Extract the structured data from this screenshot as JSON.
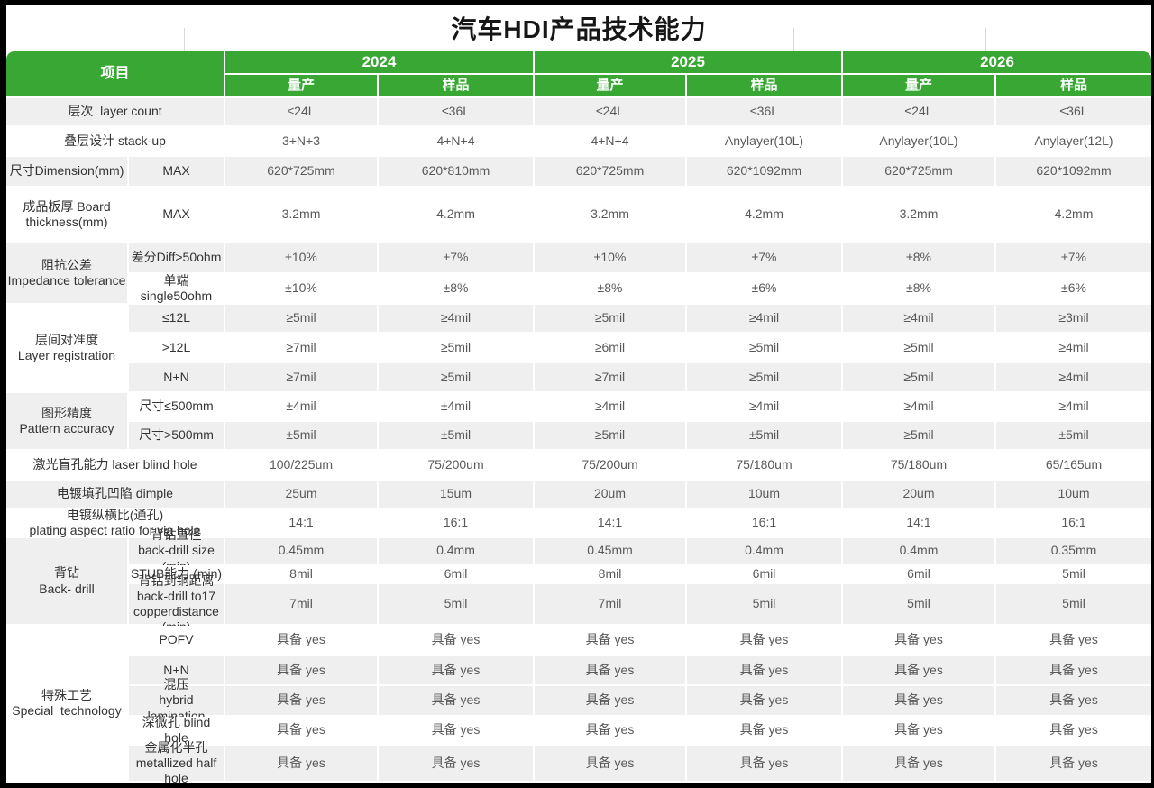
{
  "page": {
    "title": "汽车HDI产品技术能力"
  },
  "colors": {
    "header_green": "#38a733",
    "row_gray": "#efefef",
    "frame_black": "#000000",
    "label_text": "#333333",
    "value_text": "#595959"
  },
  "table": {
    "corner_label": "项目",
    "years": [
      {
        "label": "2024",
        "sub": [
          "量产",
          "样品"
        ]
      },
      {
        "label": "2025",
        "sub": [
          "量产",
          "样品"
        ]
      },
      {
        "label": "2026",
        "sub": [
          "量产",
          "样品"
        ]
      }
    ],
    "rows": [
      {
        "shade": "gray",
        "label": {
          "lines": [
            "层次  layer count"
          ]
        },
        "values": [
          "≤24L",
          "≤36L",
          "≤24L",
          "≤36L",
          "≤24L",
          "≤36L"
        ]
      },
      {
        "shade": "white",
        "label": {
          "lines": [
            "叠层设计 stack-up"
          ]
        },
        "values": [
          "3+N+3",
          "4+N+4",
          "4+N+4",
          "Anylayer(10L)",
          "Anylayer(10L)",
          "Anylayer(12L)"
        ]
      },
      {
        "shade": "gray",
        "group": {
          "lines": [
            "尺寸Dimension(mm)"
          ],
          "rowspan": 1,
          "shade": "gray"
        },
        "sub": {
          "lines": [
            "MAX"
          ]
        },
        "values": [
          "620*725mm",
          "620*810mm",
          "620*725mm",
          "620*1092mm",
          "620*725mm",
          "620*1092mm"
        ]
      },
      {
        "shade": "white",
        "group": {
          "lines": [
            "成品板厚 Board",
            "thickness(mm)"
          ],
          "rowspan": 1,
          "shade": "white"
        },
        "sub": {
          "lines": [
            "MAX"
          ]
        },
        "values": [
          "3.2mm",
          "4.2mm",
          "3.2mm",
          "4.2mm",
          "3.2mm",
          "4.2mm"
        ]
      },
      {
        "shade": "gray",
        "group": {
          "lines": [
            "阻抗公差",
            "Impedance tolerance"
          ],
          "rowspan": 2,
          "shade": "gray"
        },
        "sub": {
          "lines": [
            "差分Diff>50ohm"
          ]
        },
        "values": [
          "±10%",
          "±7%",
          "±10%",
          "±7%",
          "±8%",
          "±7%"
        ]
      },
      {
        "shade": "white",
        "sub": {
          "lines": [
            "单端 single50ohm"
          ]
        },
        "values": [
          "±10%",
          "±8%",
          "±8%",
          "±6%",
          "±8%",
          "±6%"
        ]
      },
      {
        "shade": "gray",
        "group": {
          "lines": [
            "层间对准度",
            "Layer registration"
          ],
          "rowspan": 3,
          "shade": "white"
        },
        "sub": {
          "lines": [
            "≤12L"
          ]
        },
        "values": [
          "≥5mil",
          "≥4mil",
          "≥5mil",
          "≥4mil",
          "≥4mil",
          "≥3mil"
        ]
      },
      {
        "shade": "white",
        "sub": {
          "lines": [
            ">12L"
          ]
        },
        "values": [
          "≥7mil",
          "≥5mil",
          "≥6mil",
          "≥5mil",
          "≥5mil",
          "≥4mil"
        ]
      },
      {
        "shade": "gray",
        "sub": {
          "lines": [
            "N+N"
          ]
        },
        "values": [
          "≥7mil",
          "≥5mil",
          "≥7mil",
          "≥5mil",
          "≥5mil",
          "≥4mil"
        ]
      },
      {
        "shade": "white",
        "group": {
          "lines": [
            "图形精度",
            "Pattern accuracy"
          ],
          "rowspan": 2,
          "shade": "gray"
        },
        "sub": {
          "lines": [
            "尺寸≤500mm"
          ]
        },
        "values": [
          "±4mil",
          "±4mil",
          "≥4mil",
          "≥4mil",
          "≥4mil",
          "≥4mil"
        ]
      },
      {
        "shade": "gray",
        "sub": {
          "lines": [
            "尺寸>500mm"
          ]
        },
        "values": [
          "±5mil",
          "±5mil",
          "≥5mil",
          "±5mil",
          "≥5mil",
          "±5mil"
        ]
      },
      {
        "shade": "white",
        "label": {
          "lines": [
            "激光盲孔能力 laser blind hole"
          ]
        },
        "values": [
          "100/225um",
          "75/200um",
          "75/200um",
          "75/180um",
          "75/180um",
          "65/165um"
        ]
      },
      {
        "shade": "gray",
        "label": {
          "lines": [
            "电镀填孔凹陷 dimple"
          ]
        },
        "values": [
          "25um",
          "15um",
          "20um",
          "10um",
          "20um",
          "10um"
        ]
      },
      {
        "shade": "white",
        "label": {
          "lines": [
            "电镀纵横比(通孔)",
            "plating aspect ratio for via hole"
          ]
        },
        "values": [
          "14:1",
          "16:1",
          "14:1",
          "16:1",
          "14:1",
          "16:1"
        ]
      },
      {
        "shade": "gray",
        "group": {
          "lines": [
            "背钻",
            "Back- drill"
          ],
          "rowspan": 3,
          "shade": "gray"
        },
        "sub": {
          "lines": [
            "背钻直径",
            "back-drill size (min)"
          ]
        },
        "values": [
          "0.45mm",
          "0.4mm",
          "0.45mm",
          "0.4mm",
          "0.4mm",
          "0.35mm"
        ]
      },
      {
        "shade": "white",
        "sub": {
          "lines": [
            "STUB能力 (min)"
          ]
        },
        "values": [
          "8mil",
          "6mil",
          "8mil",
          "6mil",
          "6mil",
          "5mil"
        ]
      },
      {
        "shade": "gray",
        "sub": {
          "lines": [
            "背钻到铜距离",
            "back-drill to17",
            "copperdistance (min)"
          ]
        },
        "values": [
          "7mil",
          "5mil",
          "7mil",
          "5mil",
          "5mil",
          "5mil"
        ]
      },
      {
        "shade": "white",
        "group": {
          "lines": [
            "特殊工艺",
            "Special  technology"
          ],
          "rowspan": 5,
          "shade": "white"
        },
        "sub": {
          "lines": [
            "POFV"
          ]
        },
        "values": [
          "具备 yes",
          "具备 yes",
          "具备 yes",
          "具备 yes",
          "具备 yes",
          "具备 yes"
        ]
      },
      {
        "shade": "gray",
        "sub": {
          "lines": [
            "N+N"
          ]
        },
        "values": [
          "具备 yes",
          "具备 yes",
          "具备 yes",
          "具备 yes",
          "具备 yes",
          "具备 yes"
        ]
      },
      {
        "shade": "gray",
        "sub": {
          "lines": [
            "混压",
            "hybrid lamination"
          ]
        },
        "values": [
          "具备 yes",
          "具备 yes",
          "具备 yes",
          "具备 yes",
          "具备 yes",
          "具备 yes"
        ]
      },
      {
        "shade": "white",
        "sub": {
          "lines": [
            "深微孔 blind hole"
          ]
        },
        "values": [
          "具备 yes",
          "具备 yes",
          "具备 yes",
          "具备 yes",
          "具备 yes",
          "具备 yes"
        ]
      },
      {
        "shade": "gray",
        "sub": {
          "lines": [
            "金属化半孔",
            "metallized half hole"
          ]
        },
        "values": [
          "具备 yes",
          "具备 yes",
          "具备 yes",
          "具备 yes",
          "具备 yes",
          "具备 yes"
        ]
      }
    ]
  }
}
